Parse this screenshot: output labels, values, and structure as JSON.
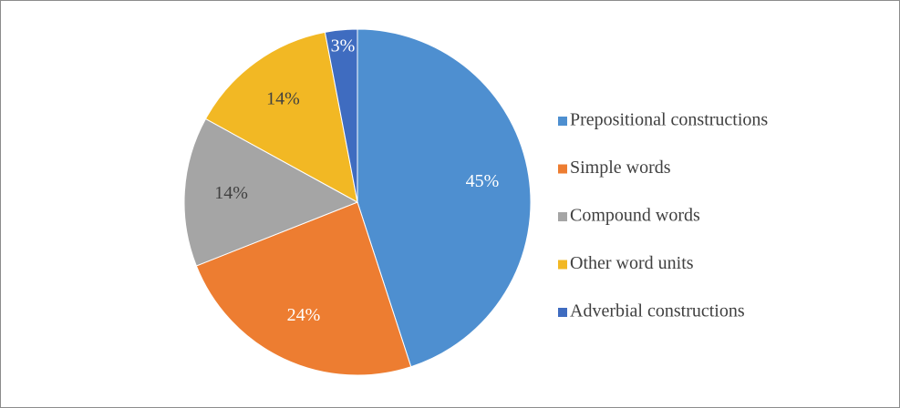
{
  "chart_data": {
    "type": "pie",
    "categories": [
      "Prepositional constructions",
      "Simple words",
      "Compound words",
      "Other word units",
      "Adverbial constructions"
    ],
    "values": [
      45,
      24,
      14,
      14,
      3
    ],
    "value_labels": [
      "45%",
      "24%",
      "14%",
      "14%",
      "3%"
    ],
    "colors": [
      "#4e8fd0",
      "#ed7d31",
      "#a5a5a5",
      "#f2b824",
      "#3f6cc0"
    ],
    "legend": "right"
  }
}
